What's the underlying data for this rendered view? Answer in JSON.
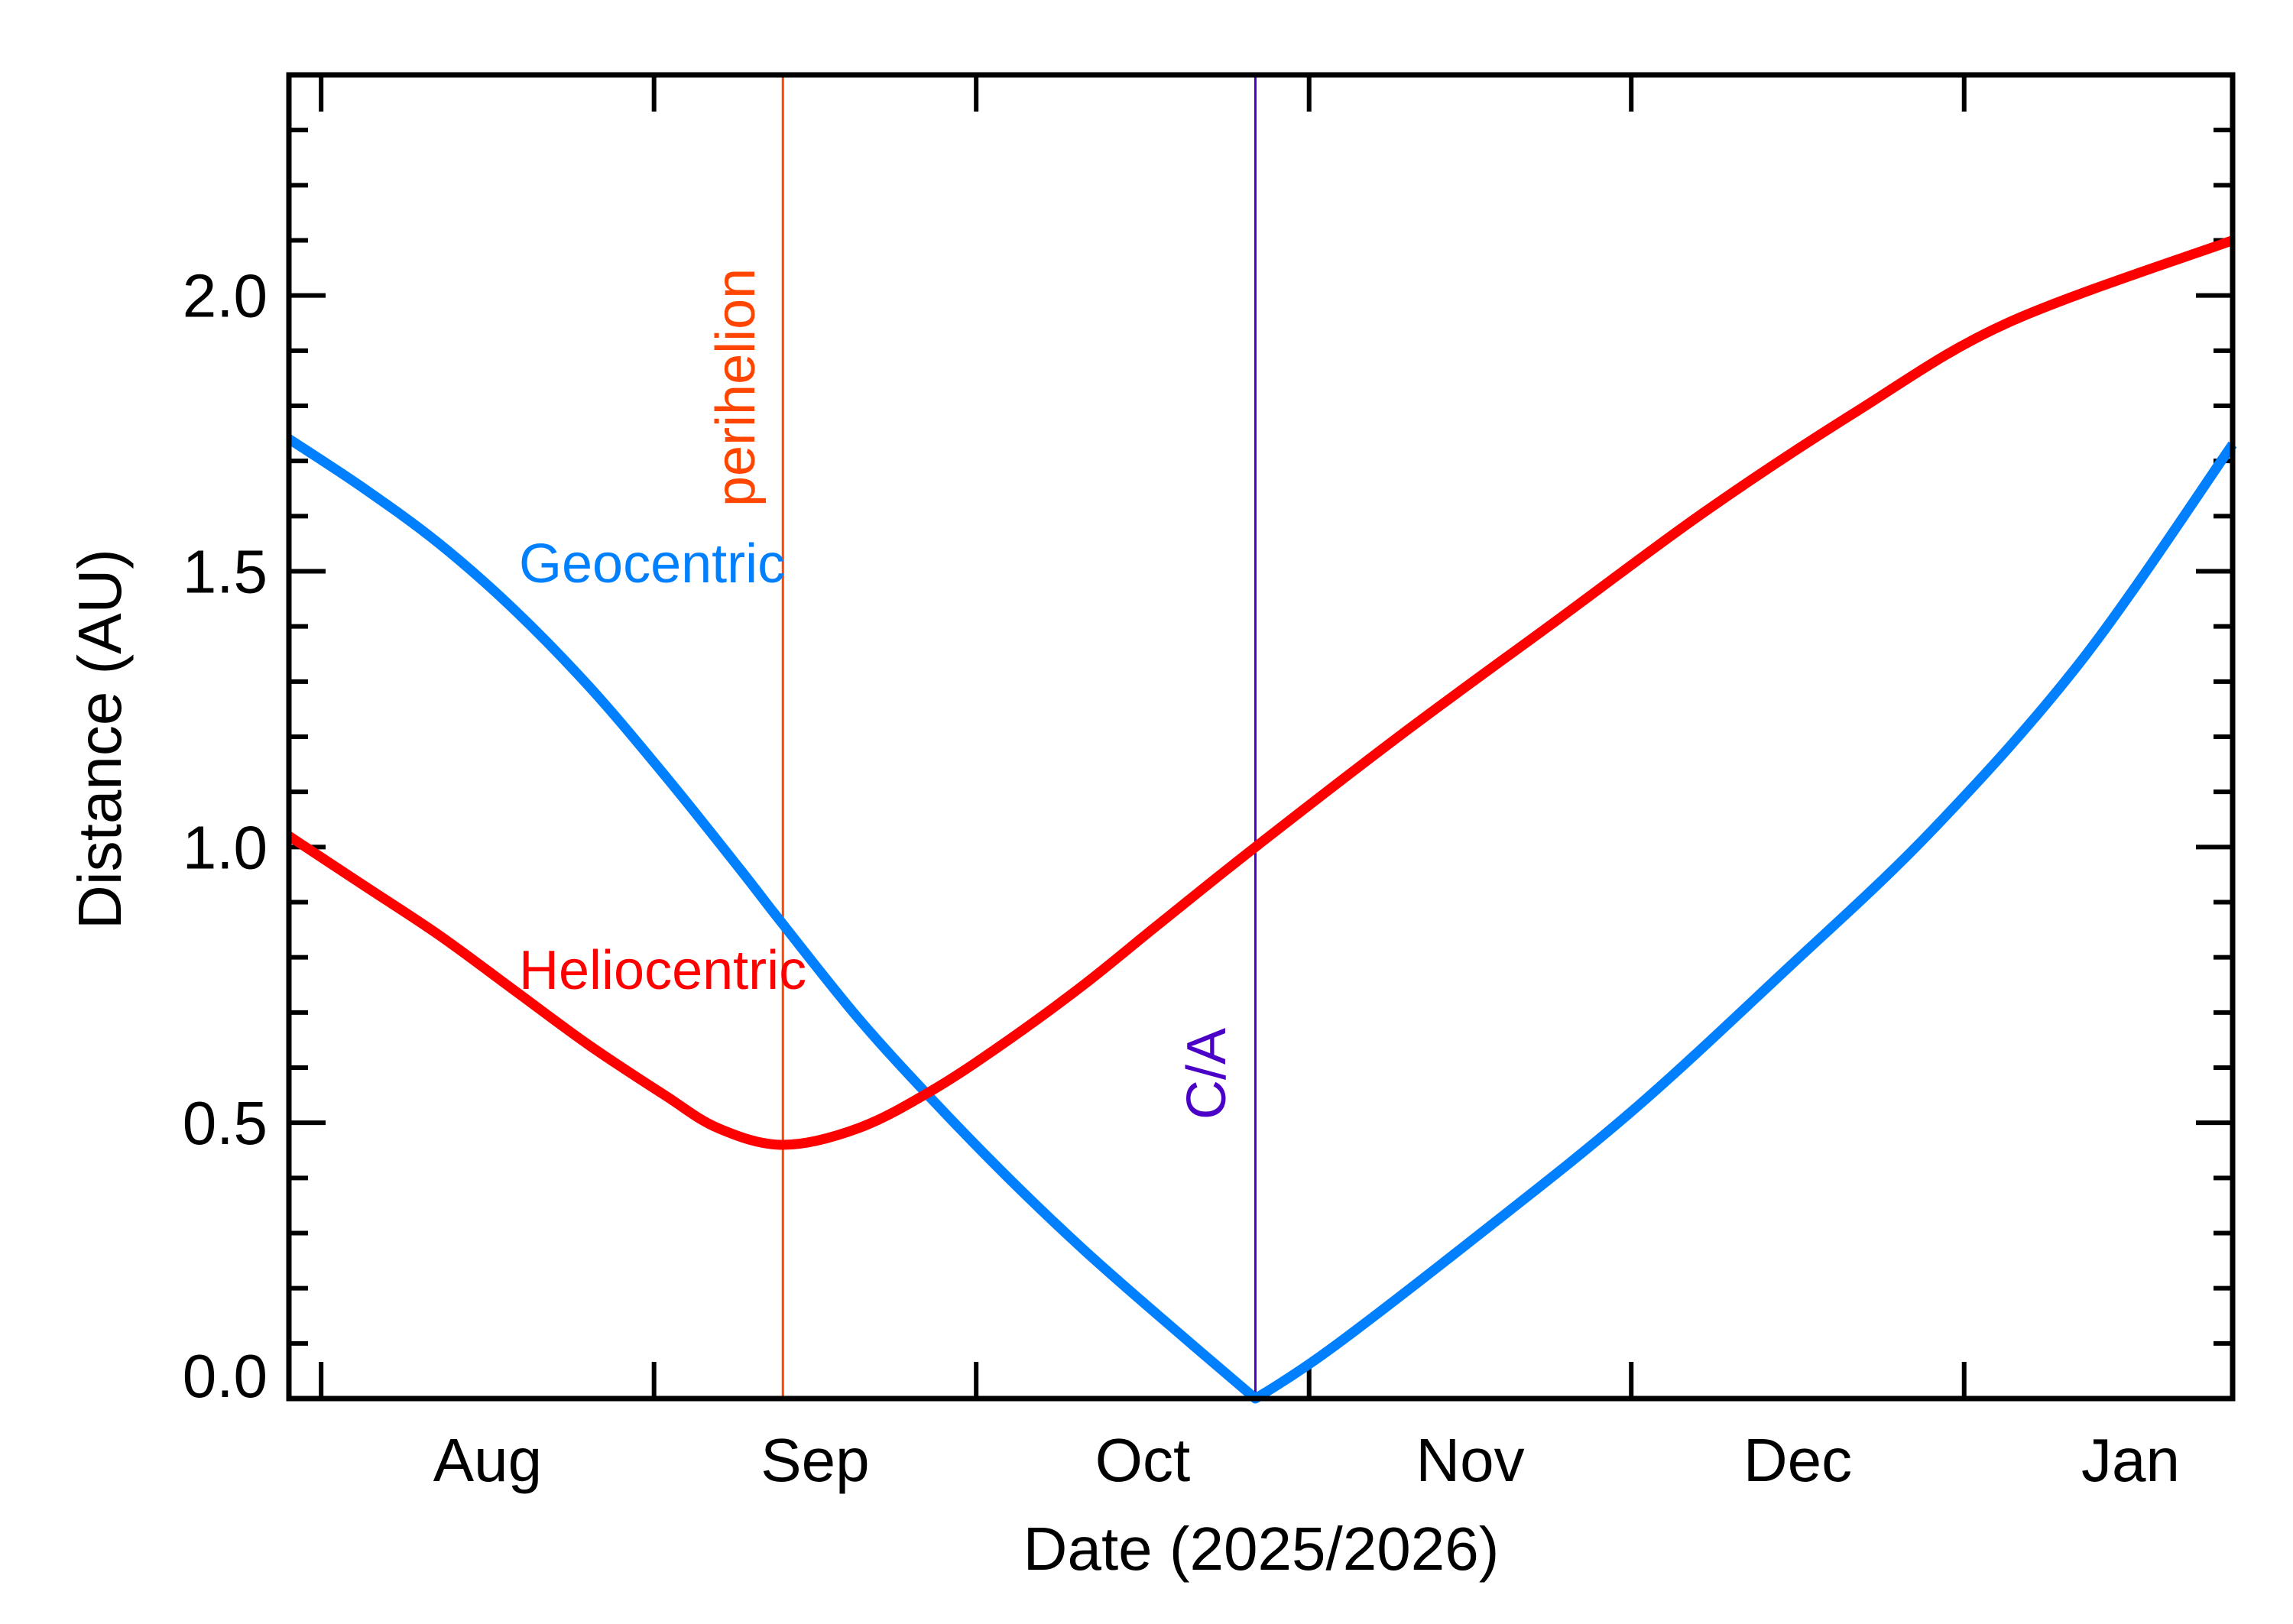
{
  "chart_data": {
    "type": "line",
    "title": "",
    "xlabel": "Date (2025/2026)",
    "ylabel": "Distance (AU)",
    "xlim": [
      "2025-07-29",
      "2026-01-26"
    ],
    "ylim": [
      0,
      2.4
    ],
    "grid": false,
    "legend": "none",
    "x_ticks": [
      {
        "date": "2025-08-01",
        "label": "Aug"
      },
      {
        "date": "2025-09-01",
        "label": "Sep"
      },
      {
        "date": "2025-10-01",
        "label": "Oct"
      },
      {
        "date": "2025-11-01",
        "label": "Nov"
      },
      {
        "date": "2025-12-01",
        "label": "Dec"
      },
      {
        "date": "2026-01-01",
        "label": "Jan"
      }
    ],
    "y_ticks": [
      {
        "value": 0.0,
        "label": "0.0"
      },
      {
        "value": 0.5,
        "label": "0.5"
      },
      {
        "value": 1.0,
        "label": "1.0"
      },
      {
        "value": 1.5,
        "label": "1.5"
      },
      {
        "value": 2.0,
        "label": "2.0"
      }
    ],
    "y_minor_step": 0.1,
    "series": [
      {
        "name": "Geocentric",
        "color": "#0080ff",
        "points": [
          [
            "2025-07-29",
            1.74
          ],
          [
            "2025-08-05",
            1.65
          ],
          [
            "2025-08-12",
            1.55
          ],
          [
            "2025-08-19",
            1.43
          ],
          [
            "2025-08-26",
            1.29
          ],
          [
            "2025-09-02",
            1.13
          ],
          [
            "2025-09-09",
            0.96
          ],
          [
            "2025-09-13",
            0.86
          ],
          [
            "2025-09-20",
            0.69
          ],
          [
            "2025-09-27",
            0.54
          ],
          [
            "2025-10-04",
            0.4
          ],
          [
            "2025-10-11",
            0.27
          ],
          [
            "2025-10-18",
            0.15
          ],
          [
            "2025-10-27",
            0.0
          ],
          [
            "2025-11-03",
            0.09
          ],
          [
            "2025-11-17",
            0.3
          ],
          [
            "2025-12-01",
            0.52
          ],
          [
            "2025-12-15",
            0.77
          ],
          [
            "2025-12-29",
            1.03
          ],
          [
            "2026-01-12",
            1.34
          ],
          [
            "2026-01-26",
            1.73
          ]
        ]
      },
      {
        "name": "Heliocentric",
        "color": "#ff0000",
        "points": [
          [
            "2025-07-29",
            1.02
          ],
          [
            "2025-08-05",
            0.93
          ],
          [
            "2025-08-12",
            0.84
          ],
          [
            "2025-08-19",
            0.74
          ],
          [
            "2025-08-26",
            0.64
          ],
          [
            "2025-09-02",
            0.55
          ],
          [
            "2025-09-07",
            0.49
          ],
          [
            "2025-09-13",
            0.46
          ],
          [
            "2025-09-20",
            0.49
          ],
          [
            "2025-09-27",
            0.56
          ],
          [
            "2025-10-04",
            0.65
          ],
          [
            "2025-10-11",
            0.75
          ],
          [
            "2025-10-18",
            0.86
          ],
          [
            "2025-10-27",
            1.0
          ],
          [
            "2025-11-10",
            1.21
          ],
          [
            "2025-11-24",
            1.41
          ],
          [
            "2025-12-08",
            1.61
          ],
          [
            "2025-12-22",
            1.79
          ],
          [
            "2026-01-05",
            1.95
          ],
          [
            "2026-01-26",
            2.1
          ]
        ]
      }
    ],
    "annotations": [
      {
        "label": "perihelion",
        "date": "2025-09-13",
        "color": "#ff4500"
      },
      {
        "label": "C/A",
        "date": "2025-10-27",
        "color": "#4b00c8"
      }
    ]
  }
}
